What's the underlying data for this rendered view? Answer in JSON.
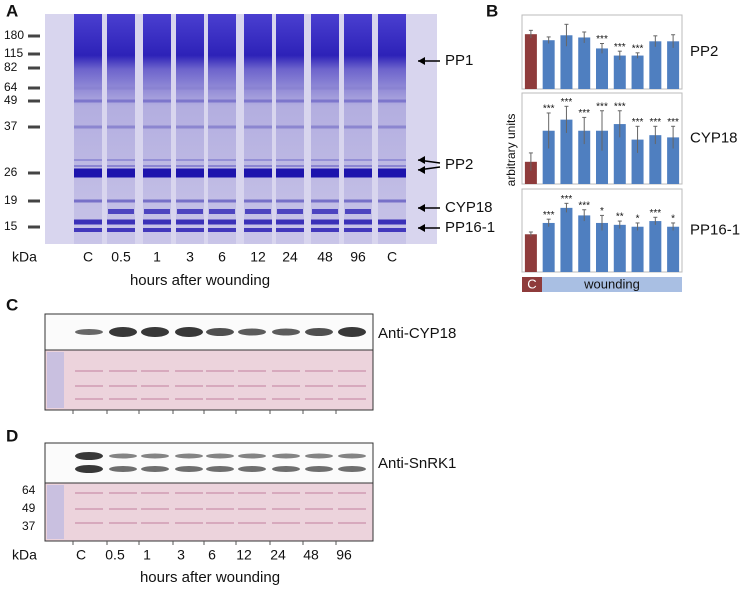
{
  "panel_a": {
    "letter": "A",
    "markers": [
      "180",
      "115",
      "82",
      "64",
      "49",
      "37",
      "26",
      "19",
      "15"
    ],
    "unit": "kDa",
    "lanes": [
      "C",
      "0.5",
      "1",
      "3",
      "6",
      "12",
      "24",
      "48",
      "96",
      "C"
    ],
    "x_label": "hours after wounding",
    "bands": [
      "PP1",
      "PP2",
      "CYP18",
      "PP16-1"
    ]
  },
  "panel_b": {
    "letter": "B",
    "y_label": "arbitrary units",
    "groups": [
      "C",
      "wounding"
    ]
  },
  "chart_data": [
    {
      "type": "bar",
      "title": "PP2",
      "values": [
        1,
        0.89,
        0.98,
        0.94,
        0.74,
        0.61,
        0.61,
        0.87,
        0.87
      ],
      "errors": [
        0.07,
        0.06,
        0.2,
        0.1,
        0.09,
        0.08,
        0.05,
        0.1,
        0.12
      ],
      "annotations": [
        null,
        null,
        null,
        null,
        "***",
        "***",
        "***",
        null,
        null
      ],
      "colors": [
        "#8e3b3b",
        "#4f7fc0",
        "#4f7fc0",
        "#4f7fc0",
        "#4f7fc0",
        "#4f7fc0",
        "#4f7fc0",
        "#4f7fc0",
        "#4f7fc0"
      ],
      "ylim": [
        0,
        1.35
      ]
    },
    {
      "type": "bar",
      "title": "CYP18",
      "values": [
        1,
        2.4,
        2.9,
        2.4,
        2.4,
        2.7,
        2.0,
        2.2,
        2.1
      ],
      "errors": [
        0.4,
        0.8,
        0.6,
        0.6,
        0.9,
        0.6,
        0.6,
        0.4,
        0.5
      ],
      "annotations": [
        null,
        "***",
        "***",
        "***",
        "***",
        "***",
        "***",
        "***",
        "***"
      ],
      "colors": [
        "#8e3b3b",
        "#4f7fc0",
        "#4f7fc0",
        "#4f7fc0",
        "#4f7fc0",
        "#4f7fc0",
        "#4f7fc0",
        "#4f7fc0",
        "#4f7fc0"
      ],
      "ylim": [
        0,
        4.1
      ]
    },
    {
      "type": "bar",
      "title": "PP16-1",
      "values": [
        1,
        1.3,
        1.7,
        1.5,
        1.3,
        1.25,
        1.2,
        1.35,
        1.2
      ],
      "errors": [
        0.06,
        0.1,
        0.12,
        0.15,
        0.2,
        0.1,
        0.1,
        0.1,
        0.1
      ],
      "annotations": [
        null,
        "***",
        "***",
        "***",
        "*",
        "**",
        "*",
        "***",
        "*"
      ],
      "colors": [
        "#8e3b3b",
        "#4f7fc0",
        "#4f7fc0",
        "#4f7fc0",
        "#4f7fc0",
        "#4f7fc0",
        "#4f7fc0",
        "#4f7fc0",
        "#4f7fc0"
      ],
      "ylim": [
        0,
        2.2
      ]
    }
  ],
  "panel_c": {
    "letter": "C",
    "antibody": "Anti-CYP18"
  },
  "panel_d": {
    "letter": "D",
    "antibody": "Anti-SnRK1",
    "markers": [
      "64",
      "49",
      "37"
    ],
    "unit": "kDa",
    "lanes": [
      "C",
      "0.5",
      "1",
      "3",
      "6",
      "12",
      "24",
      "48",
      "96"
    ],
    "x_label": "hours after wounding"
  }
}
